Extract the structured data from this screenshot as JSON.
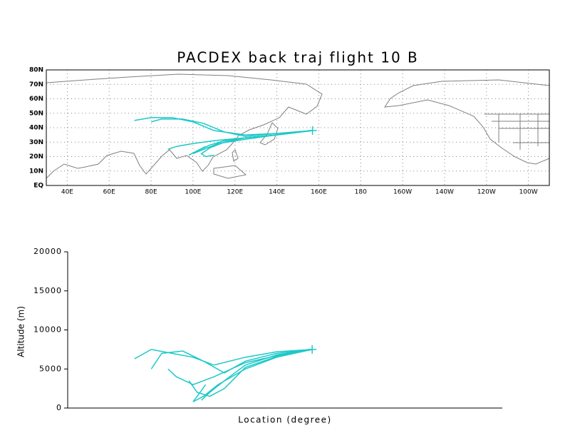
{
  "chart_data": [
    {
      "type": "map",
      "title": "PACDEX back traj flight 10 B",
      "color": "#1ec8c8",
      "grid": true,
      "xlim": [
        30,
        270
      ],
      "ylim": [
        0,
        80
      ],
      "xticks": [
        {
          "value": 40,
          "label": "40E"
        },
        {
          "value": 60,
          "label": "60E"
        },
        {
          "value": 80,
          "label": "80E"
        },
        {
          "value": 100,
          "label": "100E"
        },
        {
          "value": 120,
          "label": "120E"
        },
        {
          "value": 140,
          "label": "140E"
        },
        {
          "value": 160,
          "label": "160E"
        },
        180,
        {
          "value": 200,
          "label": "160W"
        },
        {
          "value": 220,
          "label": "140W"
        },
        {
          "value": 240,
          "label": "120W"
        },
        {
          "value": 260,
          "label": "100W"
        }
      ],
      "yticks": [
        {
          "value": 0,
          "label": "EQ"
        },
        {
          "value": 10,
          "label": "10N"
        },
        {
          "value": 20,
          "label": "20N"
        },
        {
          "value": 30,
          "label": "30N"
        },
        {
          "value": 40,
          "label": "40N"
        },
        {
          "value": 50,
          "label": "50N"
        },
        {
          "value": 60,
          "label": "60N"
        },
        {
          "value": 70,
          "label": "70N"
        },
        {
          "value": 80,
          "label": "80N"
        }
      ],
      "series": [
        {
          "x": [
            157,
            140,
            125,
            110,
            100,
            90,
            80,
            72
          ],
          "y": [
            38,
            36,
            35,
            38,
            44,
            47,
            47,
            45
          ]
        },
        {
          "x": [
            157,
            140,
            125,
            115,
            105,
            95,
            85,
            80
          ],
          "y": [
            38,
            36,
            34,
            37,
            43,
            46,
            46,
            44
          ]
        },
        {
          "x": [
            157,
            140,
            125,
            115,
            108,
            104,
            106,
            110
          ],
          "y": [
            38,
            35,
            33,
            30,
            26,
            22,
            20,
            21
          ]
        },
        {
          "x": [
            157,
            140,
            125,
            112,
            105,
            100,
            102,
            106
          ],
          "y": [
            38,
            35,
            32,
            29,
            25,
            22,
            24,
            27
          ]
        },
        {
          "x": [
            157,
            140,
            125,
            110,
            100,
            92,
            88
          ],
          "y": [
            38,
            35,
            33,
            31,
            29,
            27,
            25
          ]
        },
        {
          "x": [
            157,
            140,
            125,
            115,
            108,
            102,
            98
          ],
          "y": [
            38,
            35,
            33,
            31,
            28,
            24,
            21
          ]
        }
      ]
    },
    {
      "type": "line",
      "x_label": "Location (degree)",
      "y_label": "Altitude (m)",
      "color": "#1ec8c8",
      "xlim": [
        40,
        248
      ],
      "ylim": [
        0,
        20000
      ],
      "yticks": [
        0,
        5000,
        10000,
        15000,
        20000
      ],
      "series": [
        {
          "x": [
            157,
            140,
            125,
            110,
            100,
            90,
            80,
            72
          ],
          "y": [
            7500,
            7200,
            6500,
            5500,
            6500,
            7000,
            7500,
            6300
          ]
        },
        {
          "x": [
            157,
            140,
            125,
            115,
            105,
            95,
            85,
            80
          ],
          "y": [
            7500,
            7000,
            6000,
            4500,
            6000,
            7300,
            7000,
            5000
          ]
        },
        {
          "x": [
            157,
            140,
            125,
            115,
            108,
            104,
            106,
            110
          ],
          "y": [
            7500,
            6800,
            5500,
            3500,
            2000,
            1000,
            1500,
            2500
          ]
        },
        {
          "x": [
            157,
            140,
            125,
            112,
            105,
            100,
            102,
            106
          ],
          "y": [
            7500,
            6500,
            5000,
            3000,
            1500,
            800,
            1500,
            3000
          ]
        },
        {
          "x": [
            157,
            140,
            125,
            110,
            100,
            92,
            88
          ],
          "y": [
            7500,
            6700,
            5800,
            4000,
            3000,
            4000,
            5000
          ]
        },
        {
          "x": [
            157,
            140,
            125,
            115,
            108,
            102,
            98
          ],
          "y": [
            7500,
            6600,
            5200,
            2500,
            1500,
            2000,
            3500
          ]
        }
      ]
    }
  ]
}
